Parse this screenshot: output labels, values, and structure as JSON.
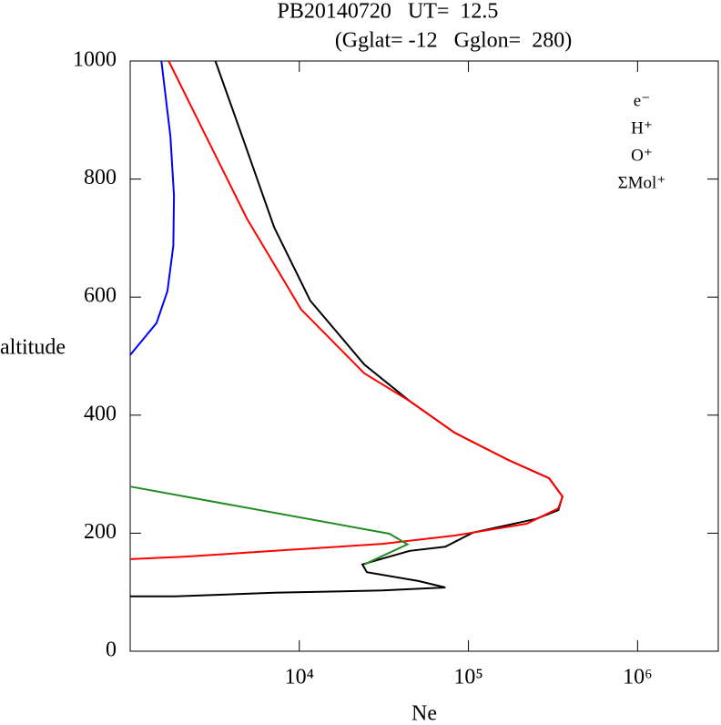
{
  "chart_data": {
    "type": "line",
    "title": "PB20140720   UT=  12.5",
    "subtitle": "(Gglat= -12   Gglon=  280)",
    "x_label": "Ne",
    "y_label": "altitude",
    "x_scale": "log",
    "xlim": [
      1000,
      3000000
    ],
    "xticks": [
      {
        "value": 10000,
        "label": "10⁴"
      },
      {
        "value": 100000,
        "label": "10⁵"
      },
      {
        "value": 1000000,
        "label": "10⁶"
      }
    ],
    "ylim": [
      0,
      1000
    ],
    "yticks": [
      0,
      200,
      400,
      600,
      800,
      1000
    ],
    "legend": "upper right",
    "series": [
      {
        "name": "e⁻",
        "color": "#000000",
        "x": [
          3190,
          4600,
          7100,
          11600,
          24200,
          44800,
          83000,
          172000,
          300000,
          360000,
          340000,
          250000,
          106000,
          73000,
          45000,
          31000,
          23600,
          25100,
          50600,
          73000,
          31000,
          7100,
          1840,
          1000
        ],
        "values": [
          1000,
          872,
          718,
          594,
          486,
          424,
          370,
          324,
          293,
          262,
          239,
          224,
          201,
          177,
          170,
          157,
          147,
          134,
          119,
          108,
          103,
          99,
          93,
          93
        ]
      },
      {
        "name": "H⁺",
        "color": "#0000ff",
        "x": [
          1530,
          1730,
          1815,
          1800,
          1660,
          1430,
          1000
        ],
        "values": [
          1000,
          872,
          772,
          687,
          610,
          556,
          502
        ]
      },
      {
        "name": "O⁺",
        "color": "#ff0000",
        "x": [
          1690,
          2650,
          4900,
          10250,
          24200,
          44800,
          83000,
          172000,
          300000,
          360000,
          340000,
          221000,
          83000,
          31000,
          7100,
          2070,
          1000
        ],
        "values": [
          1000,
          887,
          733,
          579,
          471,
          424,
          370,
          324,
          293,
          262,
          242,
          216,
          196,
          182,
          170,
          160,
          156
        ]
      },
      {
        "name": "ΣMol⁺",
        "color": "#228b22",
        "x": [
          1000,
          34100,
          43600,
          24200
        ],
        "values": [
          279,
          199,
          181,
          147
        ]
      }
    ]
  }
}
